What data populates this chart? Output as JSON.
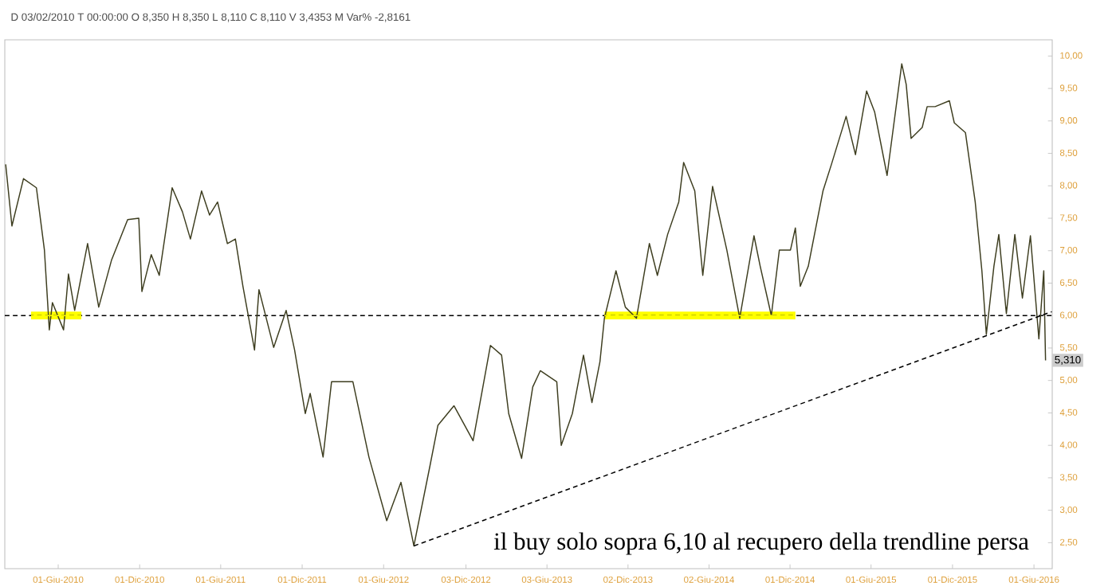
{
  "chart_data": {
    "type": "line",
    "subtitle": "D 03/02/2010 T 00:00:00 O 8,350 H 8,350 L 8,110 C 8,110 V 3,4353 M Var% -2,8161",
    "xlim": [
      "2010-02-01",
      "2016-07-12"
    ],
    "ylim": [
      2.1,
      10.25
    ],
    "xticks": [
      {
        "value": "2010-06-01",
        "label": "01-Giu-2010"
      },
      {
        "value": "2010-12-01",
        "label": "01-Dic-2010"
      },
      {
        "value": "2011-06-01",
        "label": "01-Giu-2011"
      },
      {
        "value": "2011-12-01",
        "label": "01-Dic-2011"
      },
      {
        "value": "2012-06-01",
        "label": "01-Giu-2012"
      },
      {
        "value": "2012-12-03",
        "label": "03-Dic-2012"
      },
      {
        "value": "2013-06-03",
        "label": "03-Giu-2013"
      },
      {
        "value": "2013-12-02",
        "label": "02-Dic-2013"
      },
      {
        "value": "2014-06-02",
        "label": "02-Giu-2014"
      },
      {
        "value": "2014-12-01",
        "label": "01-Dic-2014"
      },
      {
        "value": "2015-06-01",
        "label": "01-Giu-2015"
      },
      {
        "value": "2015-12-01",
        "label": "01-Dic-2015"
      },
      {
        "value": "2016-06-01",
        "label": "01-Giu-2016"
      }
    ],
    "yticks": [
      {
        "value": 2.5,
        "label": "2,50"
      },
      {
        "value": 3,
        "label": "3,00"
      },
      {
        "value": 3.5,
        "label": "3,50"
      },
      {
        "value": 4,
        "label": "4,00"
      },
      {
        "value": 4.5,
        "label": "4,50"
      },
      {
        "value": 5,
        "label": "5,00"
      },
      {
        "value": 5.5,
        "label": "5,50"
      },
      {
        "value": 6,
        "label": "6,00"
      },
      {
        "value": 6.5,
        "label": "6,50"
      },
      {
        "value": 7,
        "label": "7,00"
      },
      {
        "value": 7.5,
        "label": "7,50"
      },
      {
        "value": 8,
        "label": "8,00"
      },
      {
        "value": 8.5,
        "label": "8,50"
      },
      {
        "value": 9,
        "label": "9,00"
      },
      {
        "value": 9.5,
        "label": "9,50"
      },
      {
        "value": 10,
        "label": "10,00"
      }
    ],
    "marker": "none",
    "series": [
      {
        "color": "#3d3d1f",
        "x": [
          "2010-02-03",
          "2010-02-17",
          "2010-03-15",
          "2010-04-13",
          "2010-05-01",
          "2010-05-12",
          "2010-05-19",
          "2010-06-13",
          "2010-06-24",
          "2010-07-08",
          "2010-08-06",
          "2010-08-31",
          "2010-09-29",
          "2010-11-04",
          "2010-11-29",
          "2010-12-06",
          "2010-12-27",
          "2011-01-14",
          "2011-02-12",
          "2011-03-07",
          "2011-03-25",
          "2011-04-19",
          "2011-05-07",
          "2011-05-25",
          "2011-06-16",
          "2011-07-04",
          "2011-07-21",
          "2011-08-16",
          "2011-08-26",
          "2011-09-28",
          "2011-10-26",
          "2011-11-14",
          "2011-12-08",
          "2011-12-19",
          "2012-01-17",
          "2012-02-05",
          "2012-03-24",
          "2012-04-29",
          "2012-06-08",
          "2012-07-10",
          "2012-08-08",
          "2012-09-13",
          "2012-10-01",
          "2012-11-06",
          "2012-12-19",
          "2013-01-27",
          "2013-02-21",
          "2013-03-09",
          "2013-04-07",
          "2013-05-02",
          "2013-05-19",
          "2013-06-25",
          "2013-07-05",
          "2013-07-30",
          "2013-08-24",
          "2013-09-12",
          "2013-09-30",
          "2013-10-10",
          "2013-11-05",
          "2013-11-26",
          "2013-12-21",
          "2014-01-19",
          "2014-02-06",
          "2014-03-01",
          "2014-03-26",
          "2014-04-06",
          "2014-05-01",
          "2014-05-19",
          "2014-06-10",
          "2014-07-12",
          "2014-08-10",
          "2014-09-11",
          "2014-09-25",
          "2014-10-20",
          "2014-11-07",
          "2014-12-02",
          "2014-12-13",
          "2014-12-24",
          "2015-01-11",
          "2015-02-13",
          "2015-03-04",
          "2015-04-06",
          "2015-04-27",
          "2015-05-22",
          "2015-06-09",
          "2015-07-07",
          "2015-08-09",
          "2015-08-19",
          "2015-08-30",
          "2015-09-24",
          "2015-10-05",
          "2015-10-23",
          "2015-11-24",
          "2015-12-05",
          "2015-12-30",
          "2016-01-21",
          "2016-02-05",
          "2016-02-15",
          "2016-03-03",
          "2016-03-14",
          "2016-03-31",
          "2016-04-19",
          "2016-05-06",
          "2016-05-24",
          "2016-06-12",
          "2016-06-23",
          "2016-06-27"
        ],
        "values": [
          8.33,
          7.38,
          8.11,
          7.97,
          7.01,
          5.78,
          6.2,
          5.78,
          6.64,
          6.08,
          7.11,
          6.13,
          6.86,
          7.48,
          7.5,
          6.37,
          6.94,
          6.62,
          7.97,
          7.6,
          7.18,
          7.92,
          7.55,
          7.75,
          7.11,
          7.18,
          6.45,
          5.47,
          6.4,
          5.51,
          6.08,
          5.47,
          4.49,
          4.8,
          3.82,
          4.98,
          4.98,
          3.82,
          2.84,
          3.43,
          2.45,
          3.68,
          4.31,
          4.61,
          4.07,
          5.54,
          5.39,
          4.49,
          3.8,
          4.9,
          5.15,
          4.98,
          4.0,
          4.49,
          5.39,
          4.66,
          5.29,
          5.96,
          6.69,
          6.13,
          5.96,
          7.11,
          6.62,
          7.25,
          7.75,
          8.36,
          7.92,
          6.62,
          7.99,
          7.01,
          5.96,
          7.23,
          6.76,
          6.0,
          7.01,
          7.01,
          7.35,
          6.45,
          6.76,
          7.92,
          8.33,
          9.07,
          8.48,
          9.46,
          9.14,
          8.16,
          9.88,
          9.56,
          8.73,
          8.9,
          9.22,
          9.22,
          9.31,
          8.97,
          8.82,
          7.75,
          6.69,
          5.71,
          6.76,
          7.25,
          6.03,
          7.25,
          6.27,
          7.23,
          5.64,
          6.69,
          5.31
        ]
      },
      {
        "color": "#ffff00",
        "x": [
          "2010-04-01",
          "2010-07-23"
        ],
        "values": [
          6,
          6
        ],
        "lower": [
          5.94,
          5.94
        ],
        "upper": [
          6.06,
          6.06
        ]
      },
      {
        "color": "#ffff00",
        "x": [
          "2013-10-10",
          "2014-12-13"
        ],
        "values": [
          6,
          6
        ],
        "lower": [
          5.94,
          5.94
        ],
        "upper": [
          6.06,
          6.06
        ]
      },
      {
        "color": "#000000",
        "line_style": "dashed",
        "x": [
          "2012-08-08",
          "2016-07-11"
        ],
        "values": [
          2.45,
          6.06
        ]
      }
    ],
    "ref_lines": [
      {
        "axis": "y",
        "value": 6,
        "color": "#000000",
        "line_style": "dashed"
      }
    ],
    "annotations": [
      "il buy solo sopra 6,10 al recupero della trendline persa",
      {
        "text": "5,310",
        "x": "2016-06-27",
        "y": 5.31
      }
    ]
  }
}
